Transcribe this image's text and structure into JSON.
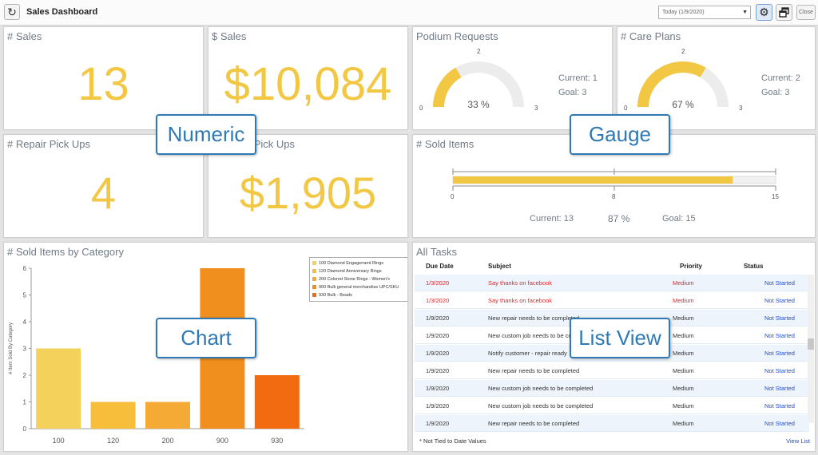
{
  "header": {
    "title": "Sales Dashboard",
    "date_select": "Today (1/9/2020)",
    "close_label": "Close"
  },
  "panels": {
    "sales_count": {
      "title": "# Sales",
      "value": "13"
    },
    "sales_amount": {
      "title": "$ Sales",
      "value": "$10,084"
    },
    "repair_pickups": {
      "title": "# Repair Pick Ups",
      "value": "4"
    },
    "repair_pickups_amount": {
      "title": "$ Repair Pick Ups",
      "value": "$1,905"
    },
    "podium": {
      "title": "Podium Requests",
      "min": "0",
      "mid": "2",
      "max": "3",
      "percent": "33 %",
      "current": "Current: 1",
      "goal": "Goal: 3",
      "fill_fraction": 0.333
    },
    "care_plans": {
      "title": "# Care Plans",
      "min": "0",
      "mid": "2",
      "max": "3",
      "percent": "67 %",
      "current": "Current: 2",
      "goal": "Goal: 3",
      "fill_fraction": 0.667
    },
    "sold_items": {
      "title": "# Sold Items",
      "scale_min": "0",
      "scale_mid": "8",
      "scale_max": "15",
      "current": "Current: 13",
      "percent": "87 %",
      "goal": "Goal: 15",
      "fill_fraction": 0.867
    },
    "category_chart": {
      "title": "# Sold Items by Category"
    },
    "tasks": {
      "title": "All Tasks",
      "columns": [
        "Due Date",
        "Subject",
        "Priority",
        "Status"
      ],
      "rows": [
        {
          "due": "1/3/2020",
          "subject": "Say thanks on facebook",
          "priority": "Medium",
          "status": "Not Started",
          "overdue": true
        },
        {
          "due": "1/3/2020",
          "subject": "Say thanks on facebook",
          "priority": "Medium",
          "status": "Not Started",
          "overdue": true
        },
        {
          "due": "1/9/2020",
          "subject": "New repair needs to be completed",
          "priority": "Medium",
          "status": "Not Started",
          "overdue": false
        },
        {
          "due": "1/9/2020",
          "subject": "New custom job needs to be completed",
          "priority": "Medium",
          "status": "Not Started",
          "overdue": false
        },
        {
          "due": "1/9/2020",
          "subject": "Notify customer - repair ready",
          "priority": "Medium",
          "status": "Not Started",
          "overdue": false
        },
        {
          "due": "1/9/2020",
          "subject": "New repair needs to be completed",
          "priority": "Medium",
          "status": "Not Started",
          "overdue": false
        },
        {
          "due": "1/9/2020",
          "subject": "New custom job needs to be completed",
          "priority": "Medium",
          "status": "Not Started",
          "overdue": false
        },
        {
          "due": "1/9/2020",
          "subject": "New custom job needs to be completed",
          "priority": "Medium",
          "status": "Not Started",
          "overdue": false
        },
        {
          "due": "1/9/2020",
          "subject": "New repair needs to be completed",
          "priority": "Medium",
          "status": "Not Started",
          "overdue": false
        }
      ],
      "note": "* Not Tied to Date Values",
      "view_list": "View List"
    }
  },
  "callouts": {
    "numeric": "Numeric",
    "gauge": "Gauge",
    "chart": "Chart",
    "list_view": "List View"
  },
  "chart_data": {
    "type": "bar",
    "categories": [
      "100",
      "120",
      "200",
      "900",
      "930"
    ],
    "values": [
      3,
      1,
      1,
      6,
      2
    ],
    "colors": [
      "#f3d15a",
      "#f7be3c",
      "#f4aa34",
      "#f08e1e",
      "#f26b10"
    ],
    "ylabel": "# Item Sold By Category",
    "ylim": [
      0,
      6
    ],
    "yticks": [
      "0",
      "1",
      "2",
      "3",
      "4",
      "5",
      "6"
    ],
    "legend": [
      "100 Diamond Engagement Rings",
      "120 Diamond Anniversary Rings",
      "200 Colored Stone Rings - Women's",
      "900 Bulk general merchandise UPC/SKU",
      "930 Bulk - Beads"
    ],
    "legend_position": "top-right"
  },
  "colors": {
    "accent_yellow": "#f2c744",
    "gauge_track": "#ececec",
    "callout_blue": "#2f79b5",
    "overdue_red": "#e0262b",
    "status_blue": "#1f4fd8"
  }
}
